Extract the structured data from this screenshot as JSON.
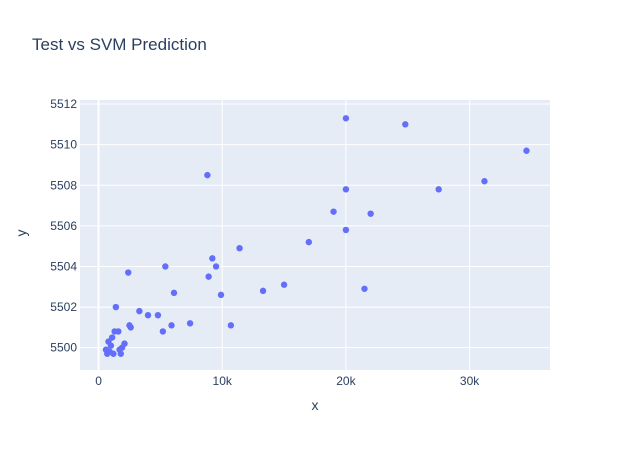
{
  "chart_data": {
    "type": "scatter",
    "title": "Test vs SVM Prediction",
    "xlabel": "x",
    "ylabel": "y",
    "xlim": [
      -1500,
      36500
    ],
    "ylim": [
      5498.9,
      5512.2
    ],
    "xticks": [
      0,
      10000,
      20000,
      30000
    ],
    "xtick_labels": [
      "0",
      "10k",
      "20k",
      "30k"
    ],
    "yticks": [
      5500,
      5502,
      5504,
      5506,
      5508,
      5510,
      5512
    ],
    "ytick_labels": [
      "5500",
      "5502",
      "5504",
      "5506",
      "5508",
      "5510",
      "5512"
    ],
    "grid": true,
    "legend": "none",
    "colors": {
      "marker": "#636efa",
      "plot_bg": "#e5ecf6",
      "text": "#2a3f5f"
    },
    "series": [
      {
        "x": [
          700,
          900,
          600,
          800,
          1000,
          1200,
          1100,
          1400,
          1700,
          1800,
          1900,
          2100,
          1300,
          1600,
          2500,
          2600,
          2400,
          3300,
          4000,
          4800,
          5200,
          5400,
          5900,
          6100,
          7400,
          8800,
          8900,
          9200,
          9500,
          9900,
          10700,
          11400,
          13300,
          15000,
          17000,
          19000,
          20000,
          20000,
          20000,
          21500,
          22000,
          24800,
          27500,
          31200,
          34600
        ],
        "y": [
          5499.7,
          5499.8,
          5499.9,
          5500.3,
          5500.1,
          5499.7,
          5500.5,
          5502.0,
          5499.9,
          5499.7,
          5500.0,
          5500.2,
          5500.8,
          5500.8,
          5501.1,
          5501.0,
          5503.7,
          5501.8,
          5501.6,
          5501.6,
          5500.8,
          5504.0,
          5501.1,
          5502.7,
          5501.2,
          5508.5,
          5503.5,
          5504.4,
          5504.0,
          5502.6,
          5501.1,
          5504.9,
          5502.8,
          5503.1,
          5505.2,
          5506.7,
          5511.3,
          5507.8,
          5505.8,
          5502.9,
          5506.6,
          5511.0,
          5507.8,
          5508.2,
          5509.7
        ]
      }
    ]
  }
}
